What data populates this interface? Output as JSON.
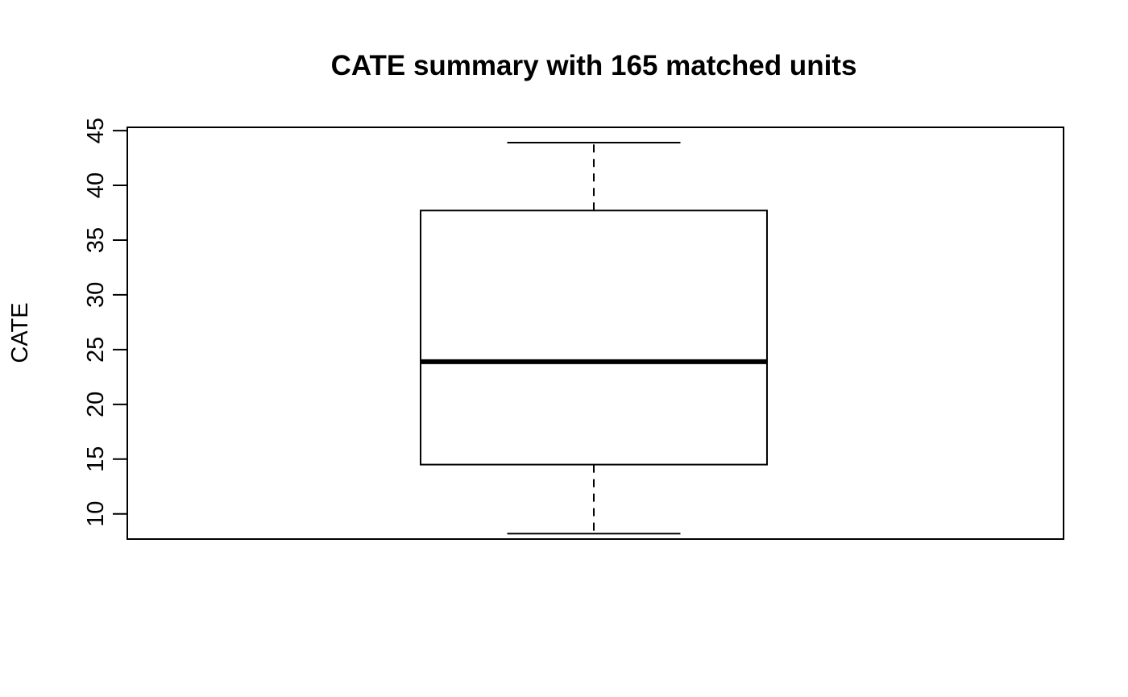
{
  "chart_data": {
    "type": "boxplot",
    "title": "CATE summary with 165 matched units",
    "xlabel": "",
    "ylabel": "CATE",
    "ylim": [
      7.7,
      45.3
    ],
    "yticks": [
      10,
      15,
      20,
      25,
      30,
      35,
      40,
      45
    ],
    "ytick_labels": [
      "10",
      "15",
      "20",
      "25",
      "30",
      "35",
      "40",
      "45"
    ],
    "grid": false,
    "legend": "none",
    "boxes": [
      {
        "whisker_low": 8.2,
        "q1": 14.5,
        "median": 23.9,
        "q3": 37.7,
        "whisker_high": 43.9
      }
    ]
  }
}
